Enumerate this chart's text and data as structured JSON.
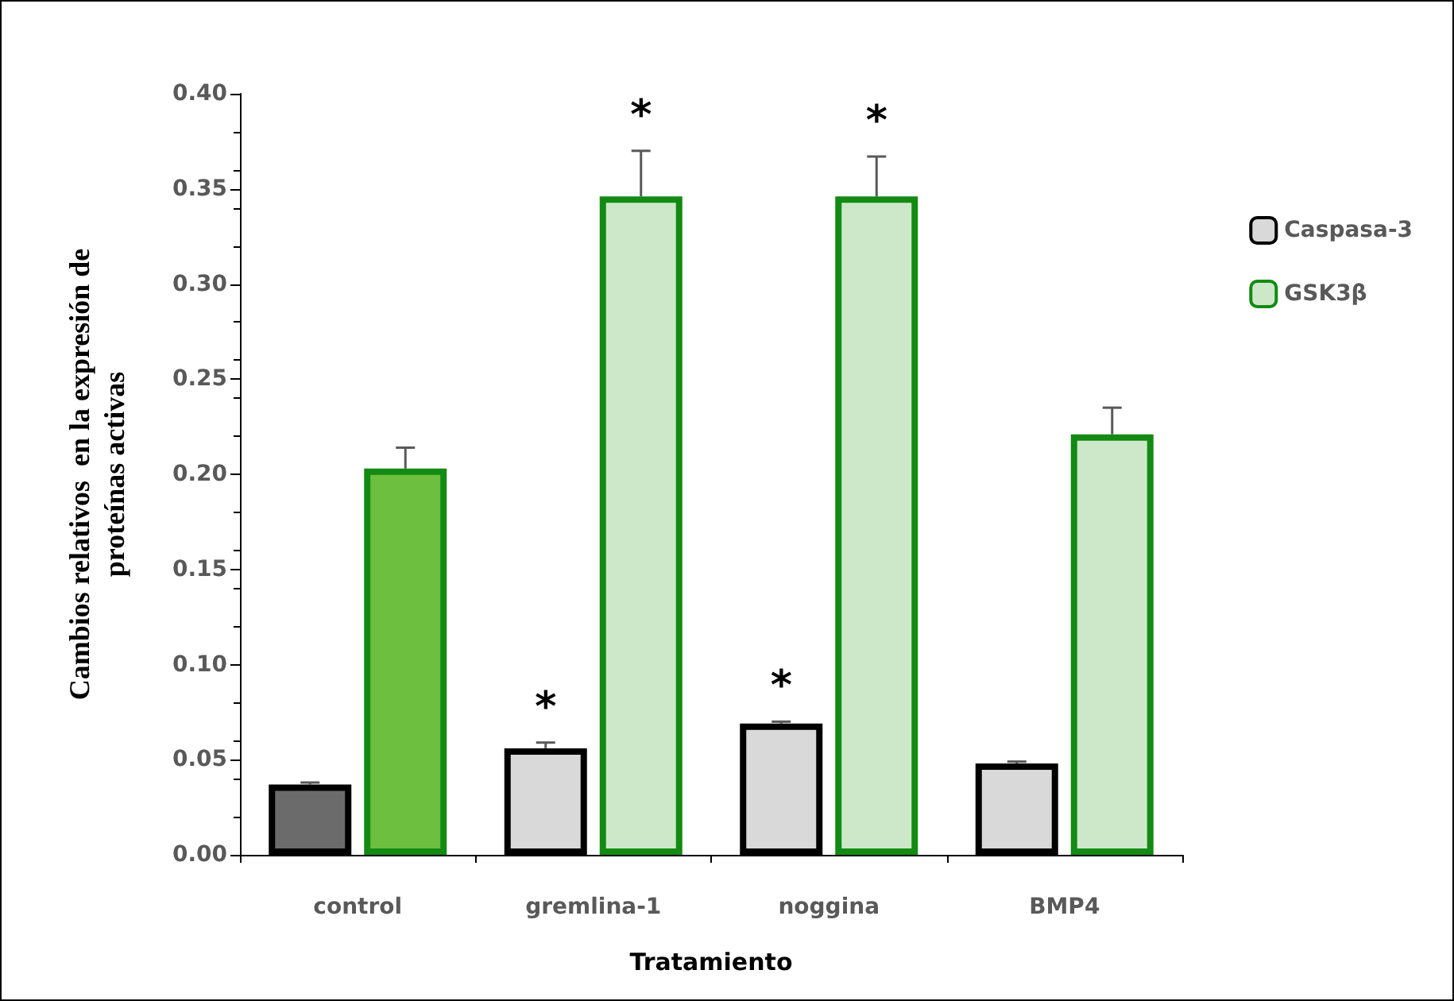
{
  "chart_data": {
    "type": "bar",
    "xlabel": "Tratamiento",
    "ylabel": "Cambios relativos  en la expresión de\nproteínas activas",
    "categories": [
      "control",
      "gremlina-1",
      "noggina",
      "BMP4"
    ],
    "series": [
      {
        "name": "Caspasa-3",
        "color": "#d9d9d9",
        "colors": [
          "#6b6b6b",
          "#d9d9d9",
          "#d9d9d9",
          "#d9d9d9"
        ],
        "values": [
          0.037,
          0.056,
          0.069,
          0.048
        ],
        "value_labels": [
          null,
          "*",
          "*",
          null
        ],
        "errors": [
          [
            0.037,
            0.038
          ],
          [
            0.056,
            0.059
          ],
          [
            0.069,
            0.07
          ],
          [
            0.048,
            0.049
          ]
        ]
      },
      {
        "name": "GSK3β",
        "color": "#cde8c8",
        "colors": [
          "#6dbf3f",
          "#cde8c8",
          "#cde8c8",
          "#cde8c8"
        ],
        "values": [
          0.203,
          0.346,
          0.346,
          0.221
        ],
        "value_labels": [
          null,
          "*",
          "*",
          null
        ],
        "errors": [
          [
            0.203,
            0.214
          ],
          [
            0.346,
            0.37
          ],
          [
            0.346,
            0.367
          ],
          [
            0.221,
            0.235
          ]
        ]
      }
    ],
    "ylim": [
      0,
      0.4
    ],
    "yticks": [
      {
        "value": 0,
        "label": "0.00"
      },
      0.05,
      {
        "value": 0.1,
        "label": "0.10"
      },
      0.15,
      {
        "value": 0.2,
        "label": "0.20"
      },
      0.25,
      {
        "value": 0.3,
        "label": "0.30"
      },
      0.35,
      {
        "value": 0.4,
        "label": "0.40"
      }
    ],
    "grid": false,
    "legend": "right"
  }
}
